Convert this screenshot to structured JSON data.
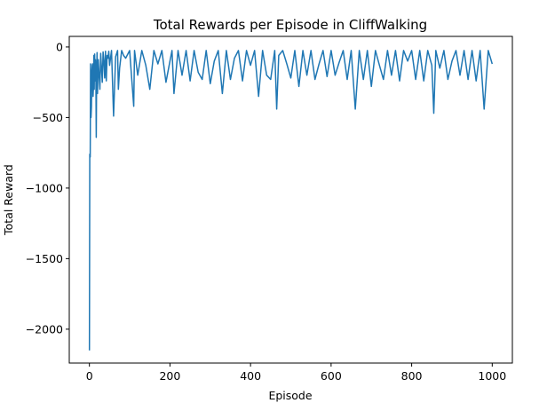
{
  "chart_data": {
    "type": "line",
    "title": "Total Rewards per Episode in CliffWalking",
    "xlabel": "Episode",
    "ylabel": "Total Reward",
    "xlim": [
      -50,
      1050
    ],
    "ylim": [
      -2240,
      75
    ],
    "xticks": [
      0,
      200,
      400,
      600,
      800,
      1000
    ],
    "yticks": [
      0,
      -500,
      -1000,
      -1500,
      -2000
    ],
    "xtick_labels": [
      "0",
      "200",
      "400",
      "600",
      "800",
      "1000"
    ],
    "ytick_labels": [
      "0",
      "−500",
      "−1000",
      "−1500",
      "−2000"
    ],
    "grid": false,
    "color": "#1f77b4",
    "series": [
      {
        "x": [
          0,
          1,
          2,
          3,
          4,
          5,
          6,
          7,
          8,
          9,
          10,
          11,
          12,
          13,
          14,
          15,
          16,
          17,
          18,
          19,
          20,
          22,
          24,
          26,
          28,
          30,
          32,
          34,
          36,
          38,
          40,
          42,
          44,
          46,
          48,
          50,
          55,
          60,
          65,
          70,
          72,
          75,
          80,
          85,
          90,
          100,
          110,
          112,
          120,
          130,
          140,
          150,
          160,
          170,
          180,
          190,
          200,
          205,
          210,
          220,
          230,
          240,
          250,
          260,
          270,
          280,
          290,
          300,
          310,
          320,
          330,
          340,
          350,
          360,
          370,
          380,
          390,
          400,
          410,
          420,
          430,
          440,
          450,
          460,
          465,
          470,
          480,
          490,
          500,
          510,
          520,
          530,
          540,
          550,
          560,
          570,
          580,
          590,
          600,
          610,
          620,
          630,
          640,
          650,
          660,
          670,
          680,
          690,
          700,
          710,
          720,
          730,
          740,
          750,
          760,
          770,
          780,
          790,
          800,
          810,
          820,
          830,
          840,
          850,
          855,
          860,
          870,
          880,
          890,
          900,
          910,
          920,
          930,
          940,
          950,
          960,
          970,
          980,
          990,
          1000
        ],
        "y": [
          -2150,
          -760,
          -780,
          -120,
          -500,
          -420,
          -180,
          -130,
          -120,
          -350,
          -280,
          -60,
          -300,
          -50,
          -240,
          -90,
          -150,
          -640,
          -200,
          -40,
          -330,
          -90,
          -200,
          -300,
          -45,
          -150,
          -250,
          -35,
          -100,
          -220,
          -30,
          -240,
          -60,
          -80,
          -30,
          -130,
          -25,
          -490,
          -70,
          -25,
          -300,
          -150,
          -25,
          -60,
          -80,
          -25,
          -420,
          -25,
          -200,
          -25,
          -130,
          -300,
          -25,
          -120,
          -25,
          -250,
          -100,
          -25,
          -330,
          -25,
          -200,
          -25,
          -240,
          -25,
          -180,
          -230,
          -25,
          -260,
          -100,
          -25,
          -330,
          -25,
          -230,
          -80,
          -25,
          -240,
          -25,
          -130,
          -25,
          -350,
          -25,
          -200,
          -230,
          -25,
          -440,
          -60,
          -25,
          -120,
          -220,
          -25,
          -280,
          -25,
          -200,
          -25,
          -230,
          -120,
          -25,
          -210,
          -25,
          -200,
          -110,
          -25,
          -230,
          -25,
          -440,
          -25,
          -230,
          -25,
          -280,
          -25,
          -130,
          -230,
          -25,
          -200,
          -25,
          -240,
          -25,
          -100,
          -25,
          -230,
          -25,
          -240,
          -25,
          -130,
          -470,
          -25,
          -150,
          -25,
          -230,
          -100,
          -25,
          -200,
          -25,
          -230,
          -25,
          -240,
          -25,
          -440,
          -25,
          -120
        ]
      }
    ]
  }
}
